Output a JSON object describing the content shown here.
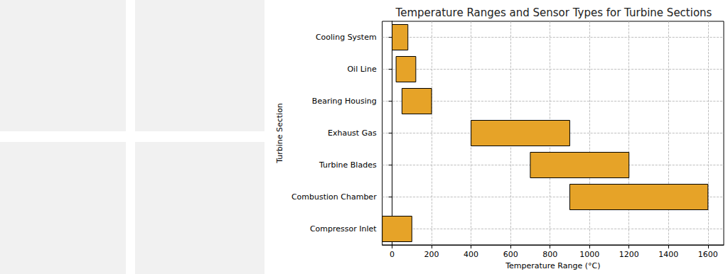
{
  "chart_data": {
    "type": "bar",
    "orientation": "horizontal",
    "title": "Temperature Ranges and Sensor Types for Turbine Sections",
    "x_label": "Temperature Range (°C)",
    "y_label": "Turbine Section",
    "categories": [
      "Compressor Inlet",
      "Combustion Chamber",
      "Turbine Blades",
      "Exhaust Gas",
      "Bearing Housing",
      "Oil Line",
      "Cooling System"
    ],
    "low": [
      -50,
      900,
      700,
      400,
      50,
      20,
      0
    ],
    "high": [
      100,
      1600,
      1200,
      900,
      200,
      120,
      80
    ],
    "color": "#e6a328",
    "xlim": [
      -50,
      1680
    ],
    "xticks": [
      0,
      200,
      400,
      600,
      800,
      1000,
      1200,
      1400,
      1600
    ],
    "grid": true
  }
}
